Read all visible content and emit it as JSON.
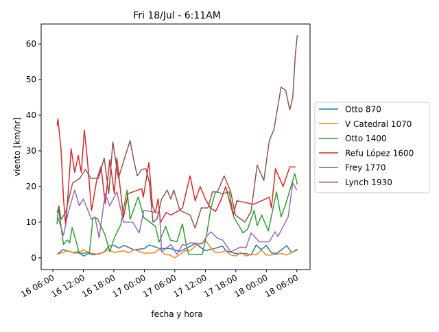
{
  "chart_data": {
    "type": "line",
    "title": "Fri 18/Jul - 6:11AM",
    "xlabel": "fecha y hora",
    "ylabel": "viento [km/hr]",
    "x_units": "hours since 16 00:00",
    "xlim": [
      3.7,
      56.6
    ],
    "ylim": [
      -3.3,
      65.6
    ],
    "xticks": [
      {
        "value": 6,
        "label": "16 06:00"
      },
      {
        "value": 12,
        "label": "16 12:00"
      },
      {
        "value": 18,
        "label": "16 18:00"
      },
      {
        "value": 24,
        "label": "17 00:00"
      },
      {
        "value": 30,
        "label": "17 06:00"
      },
      {
        "value": 36,
        "label": "17 12:00"
      },
      {
        "value": 42,
        "label": "17 18:00"
      },
      {
        "value": 48,
        "label": "18 00:00"
      },
      {
        "value": 54,
        "label": "18 06:00"
      }
    ],
    "yticks": [
      {
        "value": 0,
        "label": "0"
      },
      {
        "value": 10,
        "label": "10"
      },
      {
        "value": 20,
        "label": "20"
      },
      {
        "value": 30,
        "label": "30"
      },
      {
        "value": 40,
        "label": "40"
      },
      {
        "value": 50,
        "label": "50"
      },
      {
        "value": 60,
        "label": "60"
      }
    ],
    "grid": false,
    "legend_position": "right-outside",
    "series": [
      {
        "name": "Otto 870",
        "color": "#1f77b4",
        "x": [
          6.8,
          8,
          10,
          11,
          12,
          13,
          14,
          16,
          17,
          18,
          19,
          20,
          22,
          24,
          25,
          27,
          29,
          31,
          33,
          34,
          35,
          36,
          38,
          39.4,
          40,
          42,
          44,
          45,
          46,
          47,
          48,
          49,
          50,
          52,
          53,
          54.1
        ],
        "y": [
          1,
          2.3,
          1.5,
          1.7,
          0.5,
          1.2,
          0.8,
          1.5,
          3.3,
          3.5,
          2.7,
          3.5,
          2.2,
          2.6,
          3.6,
          2.6,
          2.6,
          1.8,
          3.2,
          4,
          3,
          2,
          2.7,
          3.3,
          2,
          1.2,
          1.2,
          0.8,
          3.6,
          2.3,
          3.5,
          1.4,
          1.2,
          3.4,
          1.5,
          2.2
        ]
      },
      {
        "name": "V Catedral 1070",
        "color": "#ff7f0e",
        "x": [
          6.8,
          8,
          9,
          10,
          11,
          12,
          13,
          14,
          15,
          17,
          18,
          20,
          21,
          22,
          23,
          24,
          26,
          27,
          28,
          29,
          30,
          31,
          32,
          33,
          34,
          35,
          36,
          37,
          38,
          39,
          40,
          41,
          42,
          43,
          44,
          45,
          46,
          47,
          48,
          49,
          50,
          51,
          52,
          53,
          54.1
        ],
        "y": [
          1,
          1.5,
          2,
          1.4,
          1.3,
          2.3,
          1.5,
          1.2,
          1,
          2.3,
          1.5,
          2,
          1.4,
          2.3,
          1.8,
          1.3,
          1.4,
          2.5,
          1,
          0.8,
          0,
          1,
          2,
          2,
          3.2,
          3.8,
          5,
          3,
          1.5,
          1.5,
          2,
          0.8,
          0.5,
          1.5,
          0.5,
          1,
          0.8,
          2.2,
          0.8,
          0.8,
          1,
          1.2,
          0.8,
          1.5,
          2.5
        ]
      },
      {
        "name": "Otto 1400",
        "color": "#2ca02c",
        "x": [
          6.8,
          7.1,
          8.1,
          8.8,
          9.3,
          9.8,
          10.5,
          11.2,
          13.2,
          13.9,
          14.8,
          16.3,
          17.2,
          18.1,
          19.4,
          20.6,
          21.2,
          22.8,
          23.9,
          26.2,
          26.9,
          28.2,
          29.1,
          30.4,
          31.5,
          32.2,
          32.7,
          35.4,
          36.2,
          37.1,
          38,
          39.4,
          40.7,
          41.6,
          43.4,
          44.3,
          45.6,
          46.2,
          47.1,
          48.4,
          50,
          50.9,
          51.8,
          53.6,
          54.1
        ],
        "y": [
          9.4,
          14,
          3.7,
          5,
          4.2,
          8.5,
          5,
          1.2,
          1.5,
          11.3,
          11,
          6.3,
          1.7,
          5.6,
          9.4,
          19,
          10.8,
          17.1,
          11.3,
          8.8,
          4.4,
          8.8,
          5,
          4.5,
          9.5,
          4,
          1,
          1,
          6,
          14,
          18.5,
          18,
          18.5,
          11.5,
          7,
          8,
          13.3,
          9,
          12,
          7.5,
          18.5,
          11.5,
          15,
          23.6,
          20.6
        ]
      },
      {
        "name": "Refu López 1600",
        "color": "#d62728",
        "x": [
          6.85,
          7,
          7.6,
          8.1,
          8.5,
          9,
          9.6,
          10.3,
          11,
          11.6,
          12.2,
          12.8,
          13.6,
          14.7,
          15.5,
          16.3,
          17.2,
          18.1,
          18.6,
          19.9,
          20.8,
          23.5,
          23.8,
          24.9,
          25.6,
          26.2,
          26.7,
          27.2,
          28.3,
          29.2,
          30.5,
          31.5,
          33,
          34,
          35,
          36,
          37,
          38,
          39,
          40,
          41.5,
          42.2,
          45.5,
          48.6,
          49,
          49.8,
          51.3,
          52.6,
          53.8
        ],
        "y": [
          37.1,
          39,
          30.6,
          16.5,
          9.4,
          18,
          30.6,
          24,
          28.7,
          24,
          35.8,
          27.5,
          13.3,
          22.3,
          25.6,
          15.2,
          27.5,
          18,
          28,
          11.3,
          18,
          19.4,
          17,
          26.7,
          14.6,
          12.7,
          16.5,
          10,
          12.7,
          12,
          13,
          14,
          23,
          16,
          20,
          16.5,
          14,
          13,
          16,
          20,
          12,
          16,
          15,
          17,
          14,
          25,
          20,
          25.5,
          25.5
        ]
      },
      {
        "name": "Frey 1770",
        "color": "#9467bd",
        "x": [
          6.85,
          8.1,
          9,
          10.3,
          11.2,
          12,
          13.6,
          14.3,
          15.1,
          16.3,
          17.2,
          18.6,
          19.9,
          21.7,
          23,
          23.9,
          25.3,
          27,
          27.4,
          29.2,
          30.4,
          31.5,
          32.2,
          33,
          35.4,
          36.2,
          37.1,
          38.4,
          39.4,
          41,
          42.9,
          44,
          45,
          46.6,
          48.6,
          49.7,
          50.3,
          51.6,
          52.3,
          53.2,
          54
        ],
        "y": [
          12,
          6.3,
          12.7,
          19,
          14.6,
          16.5,
          10.8,
          11.5,
          5.6,
          18,
          14.6,
          18.5,
          10,
          10,
          7,
          13.3,
          13,
          12.5,
          1.7,
          3.7,
          1,
          3.7,
          3.5,
          4.2,
          4,
          6,
          7.3,
          5.5,
          5,
          1.7,
          3,
          2.8,
          7,
          4.5,
          4.5,
          7.3,
          6,
          9.6,
          11.5,
          21,
          19
        ]
      },
      {
        "name": "Lynch 1930",
        "color": "#8c564b",
        "x": [
          6.85,
          7.2,
          7.6,
          8.5,
          9.9,
          11.3,
          12.4,
          13.5,
          15,
          16.1,
          17,
          17.8,
          18.9,
          20,
          21.2,
          21.9,
          22.6,
          23.5,
          24.3,
          25,
          25.7,
          26.5,
          27.4,
          28.5,
          29.2,
          29.8,
          31,
          33,
          34,
          35.2,
          36.5,
          37.4,
          38.4,
          39.7,
          41,
          41.9,
          43.8,
          45,
          46.2,
          47.5,
          48.6,
          49.5,
          50.9,
          51.8,
          52.6,
          53.2,
          53.7,
          54.1
        ],
        "y": [
          12.7,
          14.6,
          10.8,
          12.7,
          21,
          22.3,
          24.8,
          22.3,
          22.3,
          28,
          18,
          32.5,
          22.3,
          27.5,
          32.9,
          27.5,
          23,
          24.8,
          25,
          21,
          10,
          11,
          16.5,
          19,
          16.5,
          19,
          13.3,
          12,
          8.3,
          14,
          14,
          18.5,
          18.5,
          23,
          18.5,
          12,
          10,
          13,
          26,
          21.7,
          33,
          36,
          47.9,
          47,
          41.5,
          45,
          57,
          62.5
        ]
      }
    ]
  }
}
